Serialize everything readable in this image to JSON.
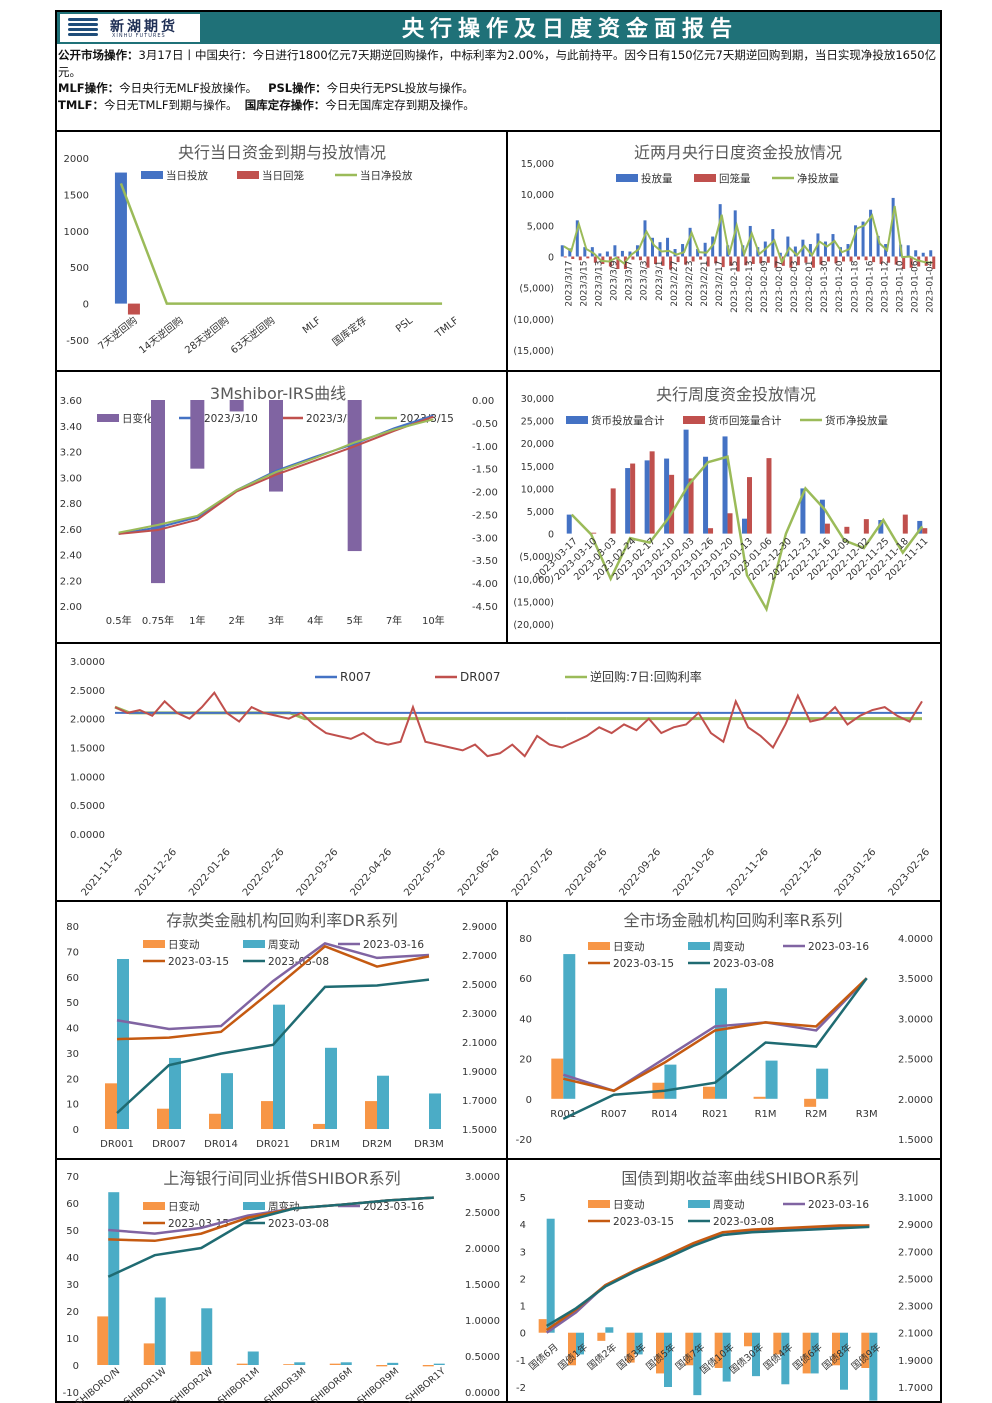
{
  "header": {
    "logo_cn": "新湖期货",
    "logo_en": "XINHU FUTURES",
    "title": "央行操作及日度资金面报告"
  },
  "summary": {
    "omo_label": "公开市场操作：",
    "omo_text": "3月17日丨中国央行：今日进行1800亿元7天期逆回购操作，中标利率为2.00%，与此前持平。因今日有150亿元7天期逆回购到期，当日实现净投放1650亿元。",
    "mlf_label": "MLF操作：",
    "mlf_text": "今日央行无MLF投放操作。",
    "psl_label": "PSL操作：",
    "psl_text": "今日央行无PSL投放与操作。",
    "tmlf_label": "TMLF：",
    "tmlf_text": "今日无TMLF到期与操作。",
    "gkdc_label": "国库定存操作：",
    "gkdc_text": "今日无国库定存到期及操作。"
  },
  "chart_data": [
    {
      "id": "daily",
      "type": "bar",
      "title": "央行当日资金到期与投放情况",
      "categories": [
        "7天逆回购",
        "14天逆回购",
        "28天逆回购",
        "63天逆回购",
        "MLF",
        "国库定存",
        "PSL",
        "TMLF"
      ],
      "series": [
        {
          "name": "当日投放",
          "values": [
            1800,
            0,
            0,
            0,
            0,
            0,
            0,
            0
          ],
          "color": "#4472c4"
        },
        {
          "name": "当日回笼",
          "values": [
            -150,
            0,
            0,
            0,
            0,
            0,
            0,
            0
          ],
          "color": "#c0504d"
        },
        {
          "name": "当日净投放",
          "values": [
            1650,
            0,
            0,
            0,
            0,
            0,
            0,
            0
          ],
          "color": "#9bbb59"
        }
      ],
      "ylim": [
        -500,
        2000
      ],
      "yticks": [
        "2000",
        "1500",
        "1000",
        "500",
        "0",
        "-500"
      ]
    },
    {
      "id": "twomonth",
      "type": "bar",
      "title": "近两月央行日度资金投放情况",
      "legend": [
        "投放量",
        "回笼量",
        "净投放量"
      ],
      "yticks": [
        "15,000",
        "10,000",
        "5,000",
        "0",
        "(5,000)",
        "(10,000)",
        "(15,000)"
      ],
      "ylim": [
        -15000,
        15000
      ],
      "xticks": [
        "2023/3/17",
        "2023/3/15",
        "2023/3/13",
        "2023/3/9",
        "2023/3/7",
        "2023/3/3",
        "2023/3/1",
        "2023/2/27",
        "2023/2/23",
        "2023/2/21",
        "2023/2/17",
        "2023-02-15",
        "2023-02-13",
        "2023-02-09",
        "2023-02-07",
        "2023-02-03",
        "2023-02-01",
        "2023-01-30",
        "2023-01-20",
        "2023-01-18",
        "2023-01-16",
        "2023-01-12",
        "2023-01-10",
        "2023-01-06",
        "2023-01-04"
      ],
      "inject": [
        1800,
        1300,
        5800,
        1500,
        1500,
        500,
        800,
        1800,
        900,
        800,
        1800,
        5800,
        3000,
        2300,
        3000,
        1200,
        2000,
        4600,
        1200,
        2200,
        3200,
        8400,
        1800,
        7400,
        1800,
        4900,
        1500,
        2400,
        4400,
        600,
        3200,
        1600,
        2700,
        2000,
        3700,
        2400,
        3600,
        1500,
        2000,
        5000,
        5600,
        7500,
        3300,
        2000,
        9400,
        1900,
        1800,
        1000,
        600,
        1000
      ],
      "withdraw": [
        -150,
        -400,
        -600,
        -300,
        -1000,
        -1200,
        -1600,
        -2000,
        -2000,
        -500,
        -600,
        -1800,
        -1200,
        -1500,
        -2100,
        -900,
        -1300,
        -800,
        -500,
        -1600,
        -1100,
        -1700,
        -1500,
        -2400,
        -1400,
        -1200,
        -1100,
        -1000,
        -1800,
        -1500,
        -1800,
        -1400,
        -1000,
        -1800,
        -1300,
        -800,
        -1100,
        -800,
        -800,
        -500,
        -600,
        -900,
        -1200,
        -1000,
        -1300,
        -2000,
        -1800,
        -1600,
        -1500,
        -2000
      ],
      "net": [
        1650,
        900,
        5200,
        1200,
        500,
        -700,
        -800,
        -200,
        -1100,
        300,
        1200,
        4000,
        1800,
        800,
        900,
        300,
        700,
        3800,
        700,
        600,
        2100,
        6700,
        300,
        5000,
        400,
        3700,
        400,
        1400,
        2600,
        -900,
        1400,
        200,
        1700,
        200,
        2400,
        1600,
        2500,
        700,
        1200,
        4500,
        5000,
        6600,
        2100,
        1000,
        8100,
        -100,
        0,
        -600,
        -900,
        -1000
      ]
    },
    {
      "id": "irs",
      "type": "line",
      "title": "3Mshibor-IRS曲线",
      "legend": [
        "日变化",
        "2023/3/10",
        "2023/3/16",
        "2023/3/15"
      ],
      "categories": [
        "0.5年",
        "0.75年",
        "1年",
        "2年",
        "3年",
        "4年",
        "5年",
        "7年",
        "10年"
      ],
      "left_ticks": [
        "3.60",
        "3.40",
        "3.20",
        "3.00",
        "2.80",
        "2.60",
        "2.40",
        "2.20",
        "2.00"
      ],
      "right_ticks": [
        "0.00",
        "-0.50",
        "-1.00",
        "-1.50",
        "-2.00",
        "-2.50",
        "-3.00",
        "-3.50",
        "-4.00",
        "-4.50"
      ],
      "ylim": [
        2.0,
        3.6
      ],
      "y2lim": [
        -4.5,
        0
      ],
      "daily_change": [
        0,
        -4.0,
        -1.5,
        -0.25,
        -2.0,
        0,
        -3.3,
        0,
        0
      ],
      "series": [
        {
          "name": "2023/3/10",
          "values": [
            2.56,
            2.61,
            2.69,
            2.9,
            3.05,
            3.16,
            3.26,
            3.38,
            3.48
          ],
          "color": "#4472c4"
        },
        {
          "name": "2023/3/16",
          "values": [
            2.56,
            2.59,
            2.67,
            2.89,
            3.02,
            3.13,
            3.24,
            3.36,
            3.47
          ],
          "color": "#c0504d"
        },
        {
          "name": "2023/3/15",
          "values": [
            2.57,
            2.63,
            2.7,
            2.9,
            3.04,
            3.15,
            3.27,
            3.37,
            3.45
          ],
          "color": "#9bbb59"
        }
      ]
    },
    {
      "id": "weekly",
      "type": "bar",
      "title": "央行周度资金投放情况",
      "legend": [
        "货币投放量合计",
        "货币回笼量合计",
        "货币净投放量"
      ],
      "yticks": [
        "30,000",
        "25,000",
        "20,000",
        "15,000",
        "10,000",
        "5,000",
        "0",
        "(5,000)",
        "(10,000)",
        "(15,000)",
        "(20,000)"
      ],
      "ylim": [
        -20000,
        30000
      ],
      "xticks": [
        "2023-03-17",
        "2023-03-10",
        "2023-03-03",
        "2023-02-24",
        "2023-02-17",
        "2023-02-10",
        "2023-02-03",
        "2023-01-26",
        "2023-01-20",
        "2023-01-13",
        "2023-01-06",
        "2022-12-30",
        "2022-12-23",
        "2022-12-16",
        "2022-12-09",
        "2022-12-02",
        "2022-11-25",
        "2022-11-18",
        "2022-11-11"
      ],
      "inject": [
        4200,
        0,
        0,
        14500,
        16200,
        16600,
        23000,
        17000,
        21500,
        3300,
        0,
        0,
        10000,
        7500,
        0,
        0,
        3000,
        0,
        2800
      ],
      "withdraw": [
        0,
        200,
        10000,
        15500,
        18200,
        13000,
        12200,
        1200,
        4500,
        12500,
        16700,
        0,
        0,
        2200,
        1500,
        3200,
        0,
        4200,
        1200
      ],
      "net": [
        4200,
        -200,
        -10000,
        -1000,
        -2000,
        3600,
        10800,
        15800,
        17000,
        -9200,
        -16700,
        0,
        10000,
        5300,
        -1500,
        -3200,
        3000,
        -4200,
        1600
      ]
    },
    {
      "id": "rates",
      "type": "line",
      "legend": [
        "R007",
        "DR007",
        "逆回购:7日:回购利率"
      ],
      "yticks": [
        "3.0000",
        "2.5000",
        "2.0000",
        "1.5000",
        "1.0000",
        "0.5000",
        "0.0000"
      ],
      "ylim": [
        0,
        3
      ],
      "xticks": [
        "2021-11-26",
        "2021-12-26",
        "2022-01-26",
        "2022-02-26",
        "2022-03-26",
        "2022-04-26",
        "2022-05-26",
        "2022-06-26",
        "2022-07-26",
        "2022-08-26",
        "2022-09-26",
        "2022-10-26",
        "2022-11-26",
        "2022-12-26",
        "2023-01-26",
        "2023-02-26"
      ],
      "dr007": [
        2.2,
        2.1,
        2.15,
        2.05,
        2.3,
        2.1,
        2.0,
        2.2,
        2.45,
        2.1,
        1.95,
        2.2,
        2.1,
        2.05,
        2.0,
        2.1,
        1.9,
        1.75,
        1.7,
        1.65,
        1.75,
        1.6,
        1.55,
        1.6,
        2.2,
        1.6,
        1.55,
        1.5,
        1.45,
        1.55,
        1.35,
        1.4,
        1.55,
        1.35,
        1.7,
        1.55,
        1.5,
        1.6,
        1.7,
        1.85,
        1.75,
        1.9,
        1.8,
        2.0,
        1.75,
        1.85,
        1.9,
        2.1,
        1.75,
        1.6,
        2.3,
        1.85,
        1.7,
        1.5,
        1.9,
        2.4,
        1.95,
        2.0,
        2.2,
        1.9,
        2.05,
        2.15,
        2.2,
        2.05,
        1.95,
        2.3
      ],
      "r007_level": 2.1,
      "reverse_repo": [
        2.2,
        2.1,
        2.1,
        2.1,
        2.1,
        2.1,
        2.1,
        2.1,
        2.1,
        2.1,
        2.1,
        2.1,
        2.1,
        2.0,
        2.0,
        2.0,
        2.0,
        2.0,
        2.0,
        2.0,
        2.0,
        2.0,
        2.0,
        2.0,
        2.0,
        2.0,
        2.0,
        2.0,
        2.0,
        2.0,
        2.0,
        2.0
      ]
    },
    {
      "id": "dr",
      "type": "bar",
      "title": "存款类金融机构回购利率DR系列",
      "legend": [
        "日变动",
        "周变动",
        "2023-03-16",
        "2023-03-15",
        "2023-03-08"
      ],
      "categories": [
        "DR001",
        "DR007",
        "DR014",
        "DR021",
        "DR1M",
        "DR2M",
        "DR3M"
      ],
      "left_ticks": [
        "80",
        "70",
        "60",
        "50",
        "40",
        "30",
        "20",
        "10",
        "0"
      ],
      "right_ticks": [
        "2.9000",
        "2.7000",
        "2.5000",
        "2.3000",
        "2.1000",
        "1.9000",
        "1.7000",
        "1.5000"
      ],
      "ylim": [
        0,
        80
      ],
      "y2lim": [
        1.5,
        2.9
      ],
      "day_change": [
        18,
        8,
        6,
        11,
        2,
        11,
        0
      ],
      "week_change": [
        67,
        28,
        22,
        49,
        32,
        21,
        14
      ],
      "d0316": [
        2.25,
        2.19,
        2.21,
        2.52,
        2.78,
        2.68,
        2.7
      ],
      "d0315": [
        2.12,
        2.13,
        2.17,
        2.46,
        2.76,
        2.62,
        2.69
      ],
      "d0308": [
        1.61,
        1.94,
        2.02,
        2.08,
        2.48,
        2.49,
        2.53
      ]
    },
    {
      "id": "r",
      "type": "bar",
      "title": "全市场金融机构回购利率R系列",
      "legend": [
        "日变动",
        "周变动",
        "2023-03-16",
        "2023-03-15",
        "2023-03-08"
      ],
      "categories": [
        "R001",
        "R007",
        "R014",
        "R021",
        "R1M",
        "R2M",
        "R3M"
      ],
      "left_ticks": [
        "80",
        "60",
        "40",
        "20",
        "0",
        "-20"
      ],
      "right_ticks": [
        "4.0000",
        "3.5000",
        "3.0000",
        "2.5000",
        "2.0000",
        "1.5000"
      ],
      "ylim": [
        -20,
        80
      ],
      "y2lim": [
        1.5,
        4.0
      ],
      "day_change": [
        20,
        0,
        8,
        6,
        1,
        -4,
        0
      ],
      "week_change": [
        72,
        0,
        17,
        55,
        19,
        15,
        0
      ],
      "d0316": [
        2.3,
        2.1,
        2.5,
        2.9,
        2.95,
        2.85,
        3.5
      ],
      "d0315": [
        2.25,
        2.1,
        2.45,
        2.85,
        2.95,
        2.9,
        3.5
      ],
      "d0308": [
        1.75,
        2.05,
        2.1,
        2.2,
        2.7,
        2.65,
        3.5
      ]
    },
    {
      "id": "shibor",
      "type": "bar",
      "title": "上海银行间同业拆借SHIBOR系列",
      "legend": [
        "日变动",
        "周变动",
        "2023-03-16",
        "2023-03-15",
        "2023-03-08"
      ],
      "categories": [
        "SHIBORO/N",
        "SHIBOR1W",
        "SHIBOR2W",
        "SHIBOR1M",
        "SHIBOR3M",
        "SHIBOR6M",
        "SHIBOR9M",
        "SHIBOR1Y"
      ],
      "left_ticks": [
        "70",
        "60",
        "50",
        "40",
        "30",
        "20",
        "10",
        "0",
        "-10"
      ],
      "right_ticks": [
        "3.0000",
        "2.5000",
        "2.0000",
        "1.5000",
        "1.0000",
        "0.5000",
        "0.0000"
      ],
      "ylim": [
        -10,
        70
      ],
      "y2lim": [
        0,
        3
      ],
      "day_change": [
        18,
        8,
        5,
        0.5,
        0.3,
        0.5,
        -0.5,
        -0.5
      ],
      "week_change": [
        64,
        25,
        21,
        5,
        1,
        1,
        0.8,
        0.5
      ],
      "d0316": [
        2.25,
        2.2,
        2.28,
        2.45,
        2.55,
        2.6,
        2.66,
        2.7
      ],
      "d0315": [
        2.12,
        2.1,
        2.2,
        2.42,
        2.55,
        2.6,
        2.66,
        2.7
      ],
      "d0308": [
        1.6,
        1.9,
        2.0,
        2.38,
        2.55,
        2.6,
        2.66,
        2.7
      ]
    },
    {
      "id": "bond",
      "type": "bar",
      "title": "国债到期收益率曲线SHIBOR系列",
      "legend": [
        "日变动",
        "周变动",
        "2023-03-16",
        "2023-03-15",
        "2023-03-08"
      ],
      "categories": [
        "国债6月",
        "国债1年",
        "国债2年",
        "国债3年",
        "国债5年",
        "国债7年",
        "国债10年",
        "国债30年",
        "国债4年",
        "国债6年",
        "国债8年",
        "国债9年"
      ],
      "left_ticks": [
        "5",
        "4",
        "3",
        "2",
        "1",
        "0",
        "-1",
        "-2"
      ],
      "right_ticks": [
        "3.1000",
        "2.9000",
        "2.7000",
        "2.5000",
        "2.3000",
        "2.1000",
        "1.9000",
        "1.7000"
      ],
      "ylim": [
        -2,
        5
      ],
      "y2lim": [
        1.7,
        3.1
      ],
      "day_change": [
        0.5,
        -1.2,
        -0.3,
        -1.1,
        -1.5,
        -1.2,
        -1.3,
        -0.5,
        -0.8,
        -1.5,
        -1.2,
        -1.3
      ],
      "week_change": [
        4.2,
        -0.8,
        0.2,
        -0.8,
        -2.0,
        -2.3,
        -1.8,
        -1.6,
        -1.9,
        -1.5,
        -2.1,
        -2.5
      ],
      "d0316": [
        2.1,
        2.25,
        2.45,
        2.55,
        2.65,
        2.75,
        2.82,
        2.85,
        2.86,
        2.87,
        2.88,
        2.89
      ],
      "d0315": [
        2.12,
        2.27,
        2.45,
        2.56,
        2.66,
        2.76,
        2.84,
        2.86,
        2.87,
        2.88,
        2.89,
        2.89
      ],
      "d0308": [
        2.15,
        2.28,
        2.44,
        2.55,
        2.64,
        2.74,
        2.82,
        2.84,
        2.85,
        2.86,
        2.87,
        2.88
      ]
    }
  ]
}
